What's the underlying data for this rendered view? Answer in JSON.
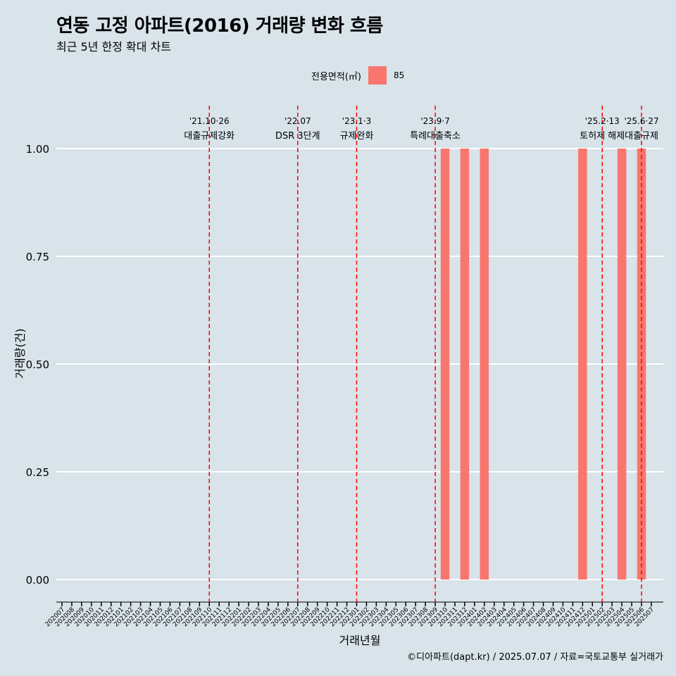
{
  "title": "연동 고정 아파트(2016) 거래량 변화 흐름",
  "subtitle": "최근 5년 한정 확대 차트",
  "caption": "©디아파트(dapt.kr) / 2025.07.07 / 자료=국토교통부 실거래가",
  "legend": {
    "title": "전용면적(㎡)",
    "items": [
      {
        "label": "85",
        "color": "#f8766d"
      }
    ]
  },
  "colors": {
    "background": "#d8e3ea",
    "bar": "#f8766d",
    "event_line": "#ff0000",
    "grid": "#ffffff"
  },
  "chart_data": {
    "type": "bar",
    "xlabel": "거래년월",
    "ylabel": "거래량(건)",
    "ylim": [
      0,
      1
    ],
    "yticks": [
      "0.00",
      "0.25",
      "0.50",
      "0.75",
      "1.00"
    ],
    "grid": true,
    "legend_position": "top",
    "categories": [
      "202007",
      "202008",
      "202009",
      "202010",
      "202011",
      "202012",
      "202101",
      "202102",
      "202103",
      "202104",
      "202105",
      "202106",
      "202107",
      "202108",
      "202109",
      "202110",
      "202111",
      "202112",
      "202201",
      "202202",
      "202203",
      "202204",
      "202205",
      "202206",
      "202207",
      "202208",
      "202209",
      "202210",
      "202211",
      "202212",
      "202301",
      "202302",
      "202303",
      "202304",
      "202305",
      "202306",
      "202307",
      "202308",
      "202309",
      "202310",
      "202311",
      "202312",
      "202401",
      "202402",
      "202403",
      "202404",
      "202405",
      "202406",
      "202407",
      "202408",
      "202409",
      "202410",
      "202411",
      "202412",
      "202501",
      "202502",
      "202503",
      "202504",
      "202505",
      "202506",
      "202507"
    ],
    "series": [
      {
        "name": "85",
        "values": [
          {
            "x": "202310",
            "y": 1
          },
          {
            "x": "202312",
            "y": 1
          },
          {
            "x": "202402",
            "y": 1
          },
          {
            "x": "202412",
            "y": 1
          },
          {
            "x": "202504",
            "y": 1
          },
          {
            "x": "202506",
            "y": 1
          }
        ]
      }
    ],
    "annotations": [
      {
        "x": "202110",
        "date": "'21.10·26",
        "label": "대출규제강화"
      },
      {
        "x": "202207",
        "date": "'22.07",
        "label": "DSR 3단계"
      },
      {
        "x": "202301",
        "date": "'23.1·3",
        "label": "규제완화"
      },
      {
        "x": "202309",
        "date": "'23.9·7",
        "label": "특례대출축소"
      },
      {
        "x": "202502",
        "date": "'25.2·13",
        "label": "토허제 해제"
      },
      {
        "x": "202506",
        "date": "'25.6·27",
        "label": "대출규제"
      }
    ]
  }
}
